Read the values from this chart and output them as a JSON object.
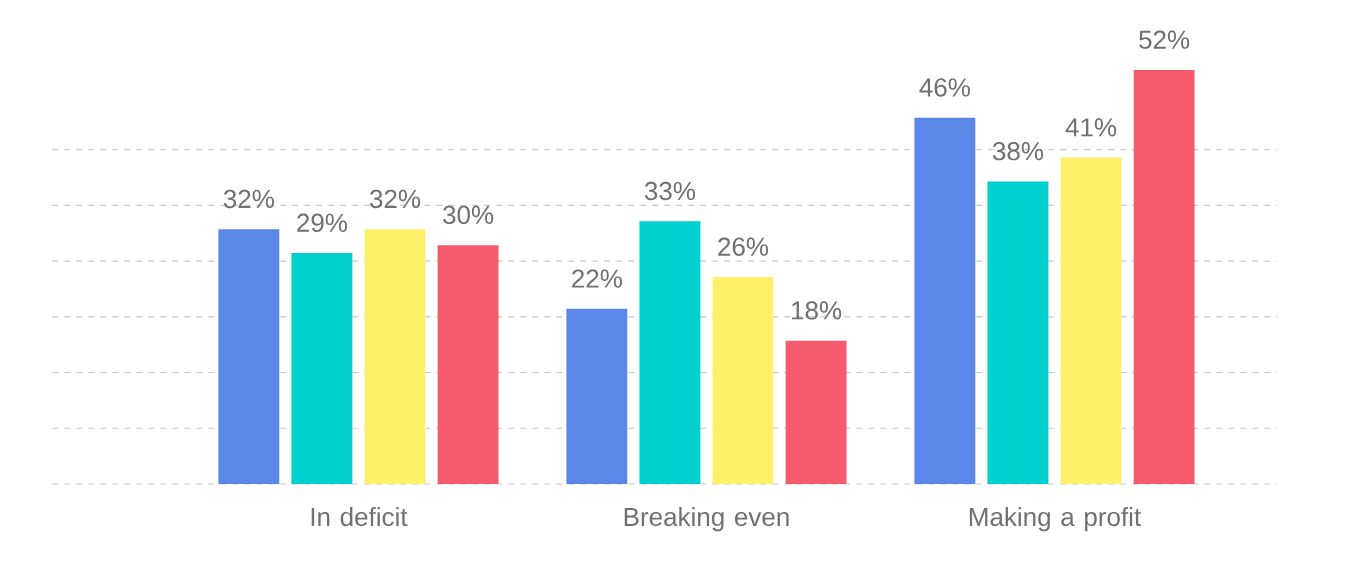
{
  "chart_data": {
    "type": "bar",
    "categories": [
      "In deficit",
      "Breaking even",
      "Making a profit"
    ],
    "series": [
      {
        "color": "#5b87e8",
        "values": [
          32,
          22,
          46
        ],
        "value_labels": [
          "32%",
          "22%",
          "46%"
        ]
      },
      {
        "color": "#00d0d0",
        "values": [
          29,
          33,
          38
        ],
        "value_labels": [
          "29%",
          "33%",
          "38%"
        ]
      },
      {
        "color": "#fff06a",
        "values": [
          32,
          26,
          41
        ],
        "value_labels": [
          "32%",
          "26%",
          "41%"
        ]
      },
      {
        "color": "#f55a6d",
        "values": [
          30,
          18,
          52
        ],
        "value_labels": [
          "30%",
          "18%",
          "52%"
        ]
      }
    ],
    "ylim": [
      0,
      52
    ],
    "yticks": [
      {
        "value": 0,
        "label": null
      },
      {
        "value": 7,
        "label": null
      },
      {
        "value": 14,
        "label": null
      },
      {
        "value": 21,
        "label": null
      },
      {
        "value": 28,
        "label": null
      },
      {
        "value": 35,
        "label": null
      },
      {
        "value": 42,
        "label": null
      }
    ],
    "grid": "y"
  }
}
